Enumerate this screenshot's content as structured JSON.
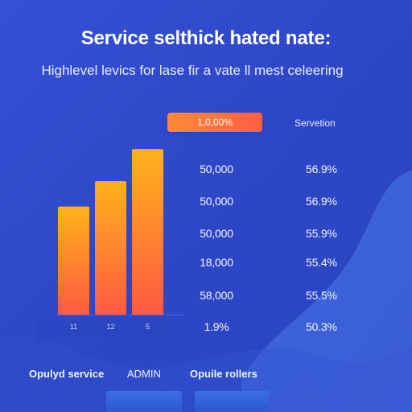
{
  "header": {
    "title": "Service selthick hated nate:",
    "subtitle": "Highlevel levics for lase fir a vate ll mest celeering"
  },
  "pill": {
    "label": "1,0,00%"
  },
  "table": {
    "header_label": "Servetion",
    "rows": [
      {
        "left": "50,000",
        "right": "56.9%"
      },
      {
        "left": "50,000",
        "right": "56.9%"
      },
      {
        "left": "50,000",
        "right": "55.9%"
      },
      {
        "left": "18,000",
        "right": "55.4%"
      },
      {
        "left": "58,000",
        "right": "55.5%"
      },
      {
        "left": "1.9%",
        "right": "50.3%"
      }
    ]
  },
  "footer": {
    "labels": [
      "Opulyd service",
      "ADMIN",
      "Opuile rollers"
    ]
  },
  "colors": {
    "background": "#2f48c9",
    "bar_top": "#ffb21a",
    "bar_bottom": "#ff5a42",
    "pill_start": "#ff8a34",
    "pill_end": "#ff5f45",
    "wave": "#3b63d9"
  },
  "chart_data": {
    "type": "bar",
    "categories": [
      "11",
      "12",
      "5"
    ],
    "values": [
      64,
      79,
      98
    ],
    "title": "",
    "xlabel": "",
    "ylabel": "",
    "ylim": [
      0,
      100
    ],
    "grid": false,
    "legend": "none"
  }
}
